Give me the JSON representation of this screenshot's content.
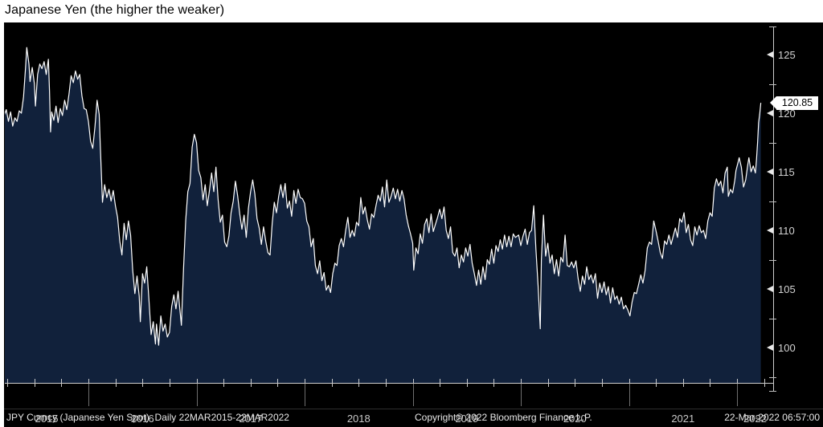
{
  "title": "Japanese Yen (the higher the weaker)",
  "last_price_label": "120.85",
  "status_bar": {
    "left": "JPY Curncy (Japanese Yen Spot)  Daily 22MAR2015-22MAR2022",
    "center": "Copyright© 2022 Bloomberg Finance L.P.",
    "right": "22-Mar-2022 06:57:00"
  },
  "colors": {
    "background": "#000000",
    "area_fill": "#11213b",
    "line": "#ffffff",
    "axis": "#cfcfcf",
    "tick_label": "#d4d4d4",
    "year_label": "#c9c9c9",
    "tag_bg": "#ffffff",
    "tag_text": "#000000"
  },
  "chart_data": {
    "type": "area",
    "title": "Japanese Yen (the higher the weaker)",
    "series_name": "JPY Curncy (Japanese Yen Spot)",
    "frequency": "Daily",
    "period": "22MAR2015-22MAR2022",
    "x_unit": "decimal_year",
    "x_range": [
      2015.22,
      2022.22
    ],
    "ylim": [
      97,
      127.4
    ],
    "y_ticks": [
      125,
      120,
      115,
      110,
      105,
      100
    ],
    "y_minor_ticks": [
      122.5,
      117.5,
      112.5,
      107.5,
      102.5,
      97.5
    ],
    "x_year_labels": [
      "2015",
      "2016",
      "2017",
      "2018",
      "2019",
      "2020",
      "2021",
      "2022"
    ],
    "grid": false,
    "legend": "none",
    "last_value": 120.85,
    "points": [
      [
        2015.22,
        119.8
      ],
      [
        2015.24,
        120.3
      ],
      [
        2015.26,
        119.3
      ],
      [
        2015.28,
        120.1
      ],
      [
        2015.3,
        118.9
      ],
      [
        2015.32,
        119.6
      ],
      [
        2015.34,
        119.3
      ],
      [
        2015.36,
        120.2
      ],
      [
        2015.38,
        120.0
      ],
      [
        2015.4,
        121.4
      ],
      [
        2015.42,
        124.1
      ],
      [
        2015.43,
        125.6
      ],
      [
        2015.45,
        124.2
      ],
      [
        2015.46,
        122.7
      ],
      [
        2015.48,
        123.9
      ],
      [
        2015.5,
        122.5
      ],
      [
        2015.51,
        120.6
      ],
      [
        2015.53,
        123.3
      ],
      [
        2015.55,
        124.2
      ],
      [
        2015.57,
        123.8
      ],
      [
        2015.59,
        124.4
      ],
      [
        2015.61,
        123.3
      ],
      [
        2015.63,
        124.6
      ],
      [
        2015.64,
        121.9
      ],
      [
        2015.65,
        118.4
      ],
      [
        2015.66,
        120.1
      ],
      [
        2015.68,
        119.4
      ],
      [
        2015.7,
        120.6
      ],
      [
        2015.72,
        119.2
      ],
      [
        2015.74,
        120.4
      ],
      [
        2015.76,
        119.8
      ],
      [
        2015.78,
        121.1
      ],
      [
        2015.8,
        120.3
      ],
      [
        2015.82,
        121.6
      ],
      [
        2015.84,
        123.2
      ],
      [
        2015.86,
        122.6
      ],
      [
        2015.88,
        123.6
      ],
      [
        2015.9,
        122.9
      ],
      [
        2015.92,
        123.3
      ],
      [
        2015.94,
        121.5
      ],
      [
        2015.96,
        120.4
      ],
      [
        2015.98,
        120.3
      ],
      [
        2016.0,
        119.3
      ],
      [
        2016.02,
        117.6
      ],
      [
        2016.04,
        117.0
      ],
      [
        2016.06,
        118.8
      ],
      [
        2016.08,
        121.1
      ],
      [
        2016.1,
        119.9
      ],
      [
        2016.11,
        117.2
      ],
      [
        2016.13,
        112.4
      ],
      [
        2016.15,
        113.9
      ],
      [
        2016.17,
        112.8
      ],
      [
        2016.19,
        113.5
      ],
      [
        2016.21,
        112.5
      ],
      [
        2016.23,
        113.4
      ],
      [
        2016.25,
        112.1
      ],
      [
        2016.27,
        111.1
      ],
      [
        2016.29,
        109.1
      ],
      [
        2016.31,
        107.9
      ],
      [
        2016.33,
        110.6
      ],
      [
        2016.35,
        109.2
      ],
      [
        2016.37,
        110.8
      ],
      [
        2016.39,
        109.6
      ],
      [
        2016.41,
        106.6
      ],
      [
        2016.43,
        104.6
      ],
      [
        2016.45,
        106.1
      ],
      [
        2016.47,
        104.4
      ],
      [
        2016.48,
        102.2
      ],
      [
        2016.5,
        106.3
      ],
      [
        2016.52,
        105.5
      ],
      [
        2016.54,
        106.9
      ],
      [
        2016.56,
        104.1
      ],
      [
        2016.58,
        101.1
      ],
      [
        2016.6,
        102.2
      ],
      [
        2016.62,
        100.3
      ],
      [
        2016.63,
        102.0
      ],
      [
        2016.65,
        100.2
      ],
      [
        2016.67,
        102.7
      ],
      [
        2016.69,
        101.4
      ],
      [
        2016.71,
        102.0
      ],
      [
        2016.73,
        100.9
      ],
      [
        2016.75,
        101.3
      ],
      [
        2016.77,
        103.5
      ],
      [
        2016.79,
        104.5
      ],
      [
        2016.81,
        103.3
      ],
      [
        2016.83,
        104.8
      ],
      [
        2016.85,
        102.9
      ],
      [
        2016.86,
        101.9
      ],
      [
        2016.88,
        106.8
      ],
      [
        2016.9,
        110.9
      ],
      [
        2016.92,
        113.3
      ],
      [
        2016.94,
        114.0
      ],
      [
        2016.96,
        117.1
      ],
      [
        2016.98,
        118.2
      ],
      [
        2017.0,
        117.5
      ],
      [
        2017.02,
        115.1
      ],
      [
        2017.04,
        114.5
      ],
      [
        2017.06,
        112.6
      ],
      [
        2017.08,
        113.9
      ],
      [
        2017.1,
        112.1
      ],
      [
        2017.12,
        113.4
      ],
      [
        2017.14,
        114.9
      ],
      [
        2017.16,
        113.3
      ],
      [
        2017.18,
        115.4
      ],
      [
        2017.2,
        112.6
      ],
      [
        2017.22,
        110.7
      ],
      [
        2017.24,
        111.3
      ],
      [
        2017.26,
        109.0
      ],
      [
        2017.28,
        108.6
      ],
      [
        2017.3,
        109.5
      ],
      [
        2017.32,
        111.5
      ],
      [
        2017.34,
        112.5
      ],
      [
        2017.36,
        114.2
      ],
      [
        2017.38,
        113.0
      ],
      [
        2017.4,
        111.4
      ],
      [
        2017.42,
        110.1
      ],
      [
        2017.44,
        111.3
      ],
      [
        2017.46,
        109.4
      ],
      [
        2017.48,
        111.9
      ],
      [
        2017.5,
        113.3
      ],
      [
        2017.52,
        114.3
      ],
      [
        2017.54,
        113.1
      ],
      [
        2017.56,
        111.0
      ],
      [
        2017.58,
        110.2
      ],
      [
        2017.6,
        108.8
      ],
      [
        2017.62,
        110.3
      ],
      [
        2017.64,
        109.1
      ],
      [
        2017.66,
        108.1
      ],
      [
        2017.68,
        107.9
      ],
      [
        2017.7,
        110.6
      ],
      [
        2017.72,
        112.4
      ],
      [
        2017.74,
        111.5
      ],
      [
        2017.76,
        112.9
      ],
      [
        2017.78,
        113.9
      ],
      [
        2017.8,
        112.8
      ],
      [
        2017.82,
        114.0
      ],
      [
        2017.84,
        111.9
      ],
      [
        2017.86,
        112.5
      ],
      [
        2017.88,
        111.2
      ],
      [
        2017.9,
        113.4
      ],
      [
        2017.92,
        112.3
      ],
      [
        2017.94,
        113.5
      ],
      [
        2017.96,
        112.8
      ],
      [
        2017.98,
        112.7
      ],
      [
        2018.0,
        112.3
      ],
      [
        2018.02,
        110.8
      ],
      [
        2018.04,
        110.3
      ],
      [
        2018.06,
        108.6
      ],
      [
        2018.08,
        109.3
      ],
      [
        2018.1,
        107.0
      ],
      [
        2018.12,
        106.3
      ],
      [
        2018.14,
        107.4
      ],
      [
        2018.16,
        105.7
      ],
      [
        2018.18,
        106.4
      ],
      [
        2018.2,
        104.9
      ],
      [
        2018.22,
        105.3
      ],
      [
        2018.24,
        104.7
      ],
      [
        2018.26,
        106.3
      ],
      [
        2018.28,
        107.2
      ],
      [
        2018.3,
        107.0
      ],
      [
        2018.32,
        108.7
      ],
      [
        2018.34,
        109.3
      ],
      [
        2018.36,
        108.6
      ],
      [
        2018.38,
        110.0
      ],
      [
        2018.4,
        111.1
      ],
      [
        2018.42,
        109.4
      ],
      [
        2018.44,
        110.0
      ],
      [
        2018.46,
        109.5
      ],
      [
        2018.48,
        110.7
      ],
      [
        2018.5,
        110.4
      ],
      [
        2018.52,
        112.8
      ],
      [
        2018.54,
        111.4
      ],
      [
        2018.56,
        112.0
      ],
      [
        2018.58,
        110.9
      ],
      [
        2018.6,
        110.1
      ],
      [
        2018.62,
        111.4
      ],
      [
        2018.64,
        111.1
      ],
      [
        2018.66,
        112.1
      ],
      [
        2018.68,
        113.0
      ],
      [
        2018.7,
        112.5
      ],
      [
        2018.72,
        113.7
      ],
      [
        2018.74,
        112.0
      ],
      [
        2018.76,
        114.3
      ],
      [
        2018.78,
        112.4
      ],
      [
        2018.8,
        112.9
      ],
      [
        2018.82,
        113.6
      ],
      [
        2018.84,
        112.7
      ],
      [
        2018.86,
        113.5
      ],
      [
        2018.88,
        112.5
      ],
      [
        2018.9,
        113.4
      ],
      [
        2018.92,
        112.7
      ],
      [
        2018.94,
        111.3
      ],
      [
        2018.96,
        110.4
      ],
      [
        2018.98,
        109.7
      ],
      [
        2019.0,
        108.9
      ],
      [
        2019.01,
        106.6
      ],
      [
        2019.03,
        108.5
      ],
      [
        2019.05,
        108.0
      ],
      [
        2019.07,
        109.7
      ],
      [
        2019.09,
        108.9
      ],
      [
        2019.11,
        110.5
      ],
      [
        2019.13,
        111.0
      ],
      [
        2019.15,
        109.8
      ],
      [
        2019.17,
        111.4
      ],
      [
        2019.19,
        109.9
      ],
      [
        2019.21,
        110.5
      ],
      [
        2019.23,
        111.1
      ],
      [
        2019.25,
        111.8
      ],
      [
        2019.27,
        111.0
      ],
      [
        2019.29,
        112.0
      ],
      [
        2019.31,
        110.0
      ],
      [
        2019.33,
        109.3
      ],
      [
        2019.35,
        110.3
      ],
      [
        2019.37,
        108.1
      ],
      [
        2019.39,
        107.8
      ],
      [
        2019.41,
        108.5
      ],
      [
        2019.43,
        106.8
      ],
      [
        2019.45,
        107.9
      ],
      [
        2019.47,
        107.3
      ],
      [
        2019.49,
        108.5
      ],
      [
        2019.51,
        107.8
      ],
      [
        2019.53,
        108.8
      ],
      [
        2019.55,
        107.2
      ],
      [
        2019.57,
        106.3
      ],
      [
        2019.59,
        105.3
      ],
      [
        2019.61,
        106.6
      ],
      [
        2019.63,
        105.4
      ],
      [
        2019.65,
        106.9
      ],
      [
        2019.67,
        105.8
      ],
      [
        2019.69,
        107.5
      ],
      [
        2019.71,
        107.1
      ],
      [
        2019.73,
        108.4
      ],
      [
        2019.75,
        107.2
      ],
      [
        2019.77,
        108.7
      ],
      [
        2019.79,
        108.2
      ],
      [
        2019.81,
        109.2
      ],
      [
        2019.83,
        108.4
      ],
      [
        2019.85,
        109.6
      ],
      [
        2019.87,
        108.6
      ],
      [
        2019.89,
        109.5
      ],
      [
        2019.91,
        108.6
      ],
      [
        2019.93,
        109.7
      ],
      [
        2019.95,
        109.4
      ],
      [
        2019.98,
        109.6
      ],
      [
        2020.0,
        108.7
      ],
      [
        2020.02,
        109.5
      ],
      [
        2020.04,
        110.1
      ],
      [
        2020.06,
        108.8
      ],
      [
        2020.08,
        109.8
      ],
      [
        2020.1,
        110.0
      ],
      [
        2020.12,
        112.1
      ],
      [
        2020.14,
        108.4
      ],
      [
        2020.16,
        105.3
      ],
      [
        2020.18,
        101.6
      ],
      [
        2020.19,
        107.5
      ],
      [
        2020.21,
        111.3
      ],
      [
        2020.23,
        107.8
      ],
      [
        2020.25,
        108.9
      ],
      [
        2020.27,
        107.2
      ],
      [
        2020.29,
        107.9
      ],
      [
        2020.31,
        106.3
      ],
      [
        2020.33,
        107.5
      ],
      [
        2020.35,
        106.1
      ],
      [
        2020.37,
        107.7
      ],
      [
        2020.39,
        107.3
      ],
      [
        2020.41,
        109.6
      ],
      [
        2020.43,
        107.0
      ],
      [
        2020.45,
        106.9
      ],
      [
        2020.47,
        107.3
      ],
      [
        2020.49,
        106.8
      ],
      [
        2020.51,
        107.4
      ],
      [
        2020.53,
        105.9
      ],
      [
        2020.55,
        104.8
      ],
      [
        2020.57,
        106.1
      ],
      [
        2020.59,
        105.4
      ],
      [
        2020.61,
        106.9
      ],
      [
        2020.63,
        105.8
      ],
      [
        2020.65,
        106.2
      ],
      [
        2020.67,
        105.5
      ],
      [
        2020.69,
        106.3
      ],
      [
        2020.71,
        104.2
      ],
      [
        2020.73,
        105.5
      ],
      [
        2020.75,
        104.7
      ],
      [
        2020.77,
        105.6
      ],
      [
        2020.79,
        104.5
      ],
      [
        2020.81,
        105.2
      ],
      [
        2020.83,
        103.8
      ],
      [
        2020.85,
        105.1
      ],
      [
        2020.87,
        104.1
      ],
      [
        2020.89,
        104.4
      ],
      [
        2020.91,
        103.7
      ],
      [
        2020.93,
        104.3
      ],
      [
        2020.95,
        103.3
      ],
      [
        2020.97,
        103.6
      ],
      [
        2020.99,
        103.2
      ],
      [
        2021.01,
        102.7
      ],
      [
        2021.03,
        103.9
      ],
      [
        2021.05,
        104.7
      ],
      [
        2021.07,
        104.6
      ],
      [
        2021.09,
        105.4
      ],
      [
        2021.11,
        106.2
      ],
      [
        2021.13,
        105.5
      ],
      [
        2021.15,
        106.6
      ],
      [
        2021.17,
        108.5
      ],
      [
        2021.19,
        109.0
      ],
      [
        2021.21,
        108.8
      ],
      [
        2021.23,
        110.8
      ],
      [
        2021.25,
        110.0
      ],
      [
        2021.27,
        109.1
      ],
      [
        2021.29,
        108.1
      ],
      [
        2021.31,
        107.6
      ],
      [
        2021.33,
        109.1
      ],
      [
        2021.35,
        108.8
      ],
      [
        2021.37,
        109.6
      ],
      [
        2021.39,
        108.8
      ],
      [
        2021.41,
        109.5
      ],
      [
        2021.43,
        110.2
      ],
      [
        2021.45,
        109.4
      ],
      [
        2021.47,
        111.0
      ],
      [
        2021.49,
        110.7
      ],
      [
        2021.51,
        111.5
      ],
      [
        2021.53,
        109.8
      ],
      [
        2021.55,
        110.5
      ],
      [
        2021.57,
        109.2
      ],
      [
        2021.59,
        108.7
      ],
      [
        2021.61,
        110.3
      ],
      [
        2021.63,
        109.6
      ],
      [
        2021.65,
        110.4
      ],
      [
        2021.67,
        109.8
      ],
      [
        2021.69,
        110.0
      ],
      [
        2021.71,
        109.3
      ],
      [
        2021.73,
        110.8
      ],
      [
        2021.75,
        111.5
      ],
      [
        2021.77,
        111.2
      ],
      [
        2021.79,
        113.6
      ],
      [
        2021.81,
        114.4
      ],
      [
        2021.83,
        113.8
      ],
      [
        2021.85,
        114.2
      ],
      [
        2021.87,
        113.2
      ],
      [
        2021.89,
        114.9
      ],
      [
        2021.91,
        115.4
      ],
      [
        2021.92,
        112.9
      ],
      [
        2021.94,
        113.5
      ],
      [
        2021.96,
        113.2
      ],
      [
        2021.98,
        114.3
      ],
      [
        2021.99,
        115.1
      ],
      [
        2022.01,
        115.8
      ],
      [
        2022.02,
        116.2
      ],
      [
        2022.04,
        115.4
      ],
      [
        2022.06,
        113.7
      ],
      [
        2022.08,
        114.3
      ],
      [
        2022.1,
        115.6
      ],
      [
        2022.11,
        116.2
      ],
      [
        2022.13,
        115.0
      ],
      [
        2022.15,
        115.5
      ],
      [
        2022.17,
        114.9
      ],
      [
        2022.18,
        116.0
      ],
      [
        2022.19,
        117.5
      ],
      [
        2022.2,
        119.2
      ],
      [
        2022.21,
        119.9
      ],
      [
        2022.22,
        120.85
      ]
    ]
  }
}
